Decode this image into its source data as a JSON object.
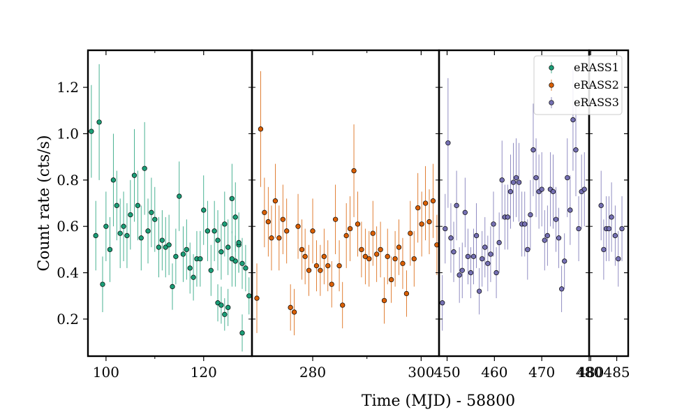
{
  "chart_data": {
    "type": "scatter",
    "ylabel": "Count rate (cts/s)",
    "xlabel": "Time (MJD) - 58800",
    "ylim": [
      0.04,
      1.36
    ],
    "yticks": [
      0.2,
      0.4,
      0.6,
      0.8,
      1.0,
      1.2
    ],
    "ytick_labels": [
      "0.2",
      "0.4",
      "0.6",
      "0.8",
      "1.0",
      "1.2"
    ],
    "legend": {
      "position": "top-right",
      "entries": [
        "eRASS1",
        "eRASS2",
        "eRASS3"
      ]
    },
    "panels": [
      {
        "xlim": [
          96.3,
          129.9
        ],
        "xticks": [
          100,
          120
        ],
        "xtick_labels": [
          "100",
          "120"
        ],
        "minor_xticks": [
          110
        ],
        "series": [
          {
            "name": "eRASS1",
            "color": "#1b9e77",
            "x": [
              97.0,
              97.9,
              98.6,
              99.3,
              100.0,
              100.8,
              101.5,
              102.2,
              102.9,
              103.6,
              104.3,
              105.0,
              105.8,
              106.5,
              107.2,
              107.9,
              108.6,
              109.3,
              110.0,
              110.8,
              111.5,
              112.2,
              112.9,
              113.6,
              114.3,
              115.0,
              115.8,
              116.5,
              117.2,
              117.9,
              118.6,
              119.3,
              120.0,
              120.8,
              121.5,
              122.2,
              122.9,
              123.6,
              124.3,
              125.0,
              125.8,
              126.5,
              127.2,
              127.9,
              128.6,
              129.3
            ],
            "y": [
              1.01,
              0.56,
              1.05,
              0.35,
              0.6,
              0.5,
              0.8,
              0.69,
              0.57,
              0.6,
              0.56,
              0.65,
              0.82,
              0.69,
              0.55,
              0.85,
              0.58,
              0.66,
              0.63,
              0.51,
              0.54,
              0.51,
              0.52,
              0.34,
              0.47,
              0.73,
              0.48,
              0.5,
              0.42,
              0.38,
              0.46,
              0.46,
              0.67,
              0.58,
              0.41,
              0.58,
              0.54,
              0.49,
              0.61,
              0.51,
              0.72,
              0.45,
              0.52,
              0.44,
              0.42,
              0.3
            ],
            "err": [
              0.2,
              0.15,
              0.25,
              0.12,
              0.15,
              0.14,
              0.2,
              0.15,
              0.15,
              0.15,
              0.14,
              0.15,
              0.2,
              0.15,
              0.14,
              0.2,
              0.14,
              0.15,
              0.14,
              0.13,
              0.13,
              0.13,
              0.13,
              0.1,
              0.12,
              0.15,
              0.12,
              0.13,
              0.11,
              0.1,
              0.12,
              0.12,
              0.15,
              0.13,
              0.11,
              0.13,
              0.13,
              0.12,
              0.14,
              0.12,
              0.15,
              0.11,
              0.12,
              0.11,
              0.1,
              0.08
            ]
          },
          {
            "name": "eRASS1",
            "color": "#1b9e77",
            "x": [
              122.9,
              123.6,
              124.3,
              125.0,
              125.8,
              126.5,
              127.2,
              127.9
            ],
            "y": [
              0.27,
              0.26,
              0.22,
              0.25,
              0.46,
              0.64,
              0.53,
              0.14
            ],
            "err": [
              0.08,
              0.08,
              0.07,
              0.08,
              0.12,
              0.15,
              0.13,
              0.08
            ]
          }
        ]
      },
      {
        "xlim": [
          268.8,
          303.3
        ],
        "xticks": [
          280,
          300
        ],
        "xtick_labels": [
          "280",
          "300"
        ],
        "minor_xticks": [
          290
        ],
        "series": [
          {
            "name": "eRASS2",
            "color": "#d95f02",
            "x": [
              269.7,
              270.4,
              271.1,
              271.8,
              272.4,
              273.1,
              273.8,
              274.5,
              275.2,
              275.9,
              276.6,
              277.3,
              278.0,
              278.6,
              279.3,
              280.0,
              280.7,
              281.4,
              282.1,
              282.8,
              283.5,
              284.2,
              284.9,
              285.5,
              286.2,
              286.9,
              287.6,
              288.3,
              289.0,
              289.7,
              290.4,
              291.1,
              291.8,
              292.5,
              293.2,
              293.8,
              294.5,
              295.2,
              295.9,
              296.6,
              297.3,
              298.0,
              298.7,
              299.4,
              300.1,
              300.8,
              301.5,
              302.2,
              302.9
            ],
            "y": [
              0.29,
              1.02,
              0.66,
              0.62,
              0.55,
              0.71,
              0.55,
              0.63,
              0.58,
              0.25,
              0.23,
              0.6,
              0.5,
              0.47,
              0.41,
              0.58,
              0.43,
              0.41,
              0.47,
              0.43,
              0.35,
              0.63,
              0.43,
              0.26,
              0.56,
              0.59,
              0.84,
              0.61,
              0.5,
              0.47,
              0.46,
              0.57,
              0.48,
              0.5,
              0.28,
              0.47,
              0.37,
              0.46,
              0.51,
              0.44,
              0.31,
              0.57,
              0.46,
              0.68,
              0.61,
              0.7,
              0.62,
              0.71,
              0.52
            ],
            "err": [
              0.15,
              0.25,
              0.15,
              0.15,
              0.14,
              0.16,
              0.14,
              0.15,
              0.14,
              0.1,
              0.1,
              0.14,
              0.13,
              0.12,
              0.11,
              0.14,
              0.11,
              0.11,
              0.12,
              0.11,
              0.1,
              0.15,
              0.11,
              0.1,
              0.14,
              0.14,
              0.2,
              0.14,
              0.12,
              0.12,
              0.12,
              0.14,
              0.12,
              0.12,
              0.1,
              0.12,
              0.1,
              0.12,
              0.12,
              0.11,
              0.1,
              0.14,
              0.12,
              0.15,
              0.14,
              0.16,
              0.14,
              0.16,
              0.13
            ]
          }
        ]
      },
      {
        "xlim": [
          448.3,
          480.0
        ],
        "xticks": [
          450,
          460,
          470,
          480
        ],
        "xtick_labels": [
          "450",
          "460",
          "470",
          "480"
        ],
        "minor_xticks": [],
        "series": [
          {
            "name": "eRASS3",
            "color": "#7570b3",
            "x": [
              449.0,
              449.6,
              450.2,
              450.8,
              451.4,
              452.0,
              452.6,
              453.2,
              453.8,
              454.4,
              455.0,
              455.6,
              456.2,
              456.8,
              457.4,
              458.0,
              458.6,
              459.2,
              459.8,
              460.4,
              461.0,
              461.6,
              462.2,
              462.8,
              463.4,
              464.0,
              464.6,
              465.2,
              465.8,
              466.4,
              467.0,
              467.6,
              468.2,
              468.8,
              469.4,
              470.0,
              470.6,
              471.2,
              471.8,
              472.4,
              473.0,
              473.6,
              474.2,
              474.8,
              475.4,
              476.0,
              476.6,
              477.2,
              477.8,
              478.4,
              479.0
            ],
            "y": [
              0.27,
              0.59,
              0.96,
              0.55,
              0.49,
              0.69,
              0.39,
              0.41,
              0.66,
              0.47,
              0.4,
              0.47,
              0.56,
              0.32,
              0.46,
              0.51,
              0.44,
              0.48,
              0.61,
              0.4,
              0.53,
              0.8,
              0.64,
              0.64,
              0.75,
              0.79,
              0.81,
              0.79,
              0.61,
              0.61,
              0.5,
              0.65,
              0.93,
              0.81,
              0.75,
              0.76,
              0.54,
              0.56,
              0.76,
              0.75,
              0.63,
              0.55,
              0.33,
              0.45,
              0.81,
              0.67,
              1.06,
              0.93,
              0.59,
              0.75,
              0.76
            ],
            "err": [
              0.12,
              0.15,
              0.28,
              0.15,
              0.13,
              0.15,
              0.12,
              0.12,
              0.15,
              0.12,
              0.11,
              0.12,
              0.14,
              0.1,
              0.12,
              0.13,
              0.12,
              0.12,
              0.14,
              0.11,
              0.13,
              0.17,
              0.14,
              0.14,
              0.16,
              0.17,
              0.17,
              0.17,
              0.14,
              0.14,
              0.13,
              0.15,
              0.2,
              0.17,
              0.16,
              0.16,
              0.13,
              0.13,
              0.16,
              0.16,
              0.14,
              0.13,
              0.1,
              0.12,
              0.17,
              0.15,
              0.22,
              0.2,
              0.14,
              0.16,
              0.16
            ]
          }
        ]
      },
      {
        "xlim": [
          479.7,
          487.2
        ],
        "xticks": [
          480,
          485
        ],
        "xtick_labels": [
          "480",
          "485"
        ],
        "minor_xticks": [],
        "series": [
          {
            "name": "eRASS3",
            "color": "#7570b3",
            "x": [
              482.0,
              482.5,
              483.0,
              483.5,
              484.0,
              484.7,
              485.3,
              486.0
            ],
            "y": [
              0.69,
              0.5,
              0.59,
              0.59,
              0.64,
              0.56,
              0.46,
              0.59
            ],
            "err": [
              0.15,
              0.13,
              0.14,
              0.14,
              0.15,
              0.13,
              0.12,
              0.14
            ]
          }
        ]
      }
    ]
  }
}
